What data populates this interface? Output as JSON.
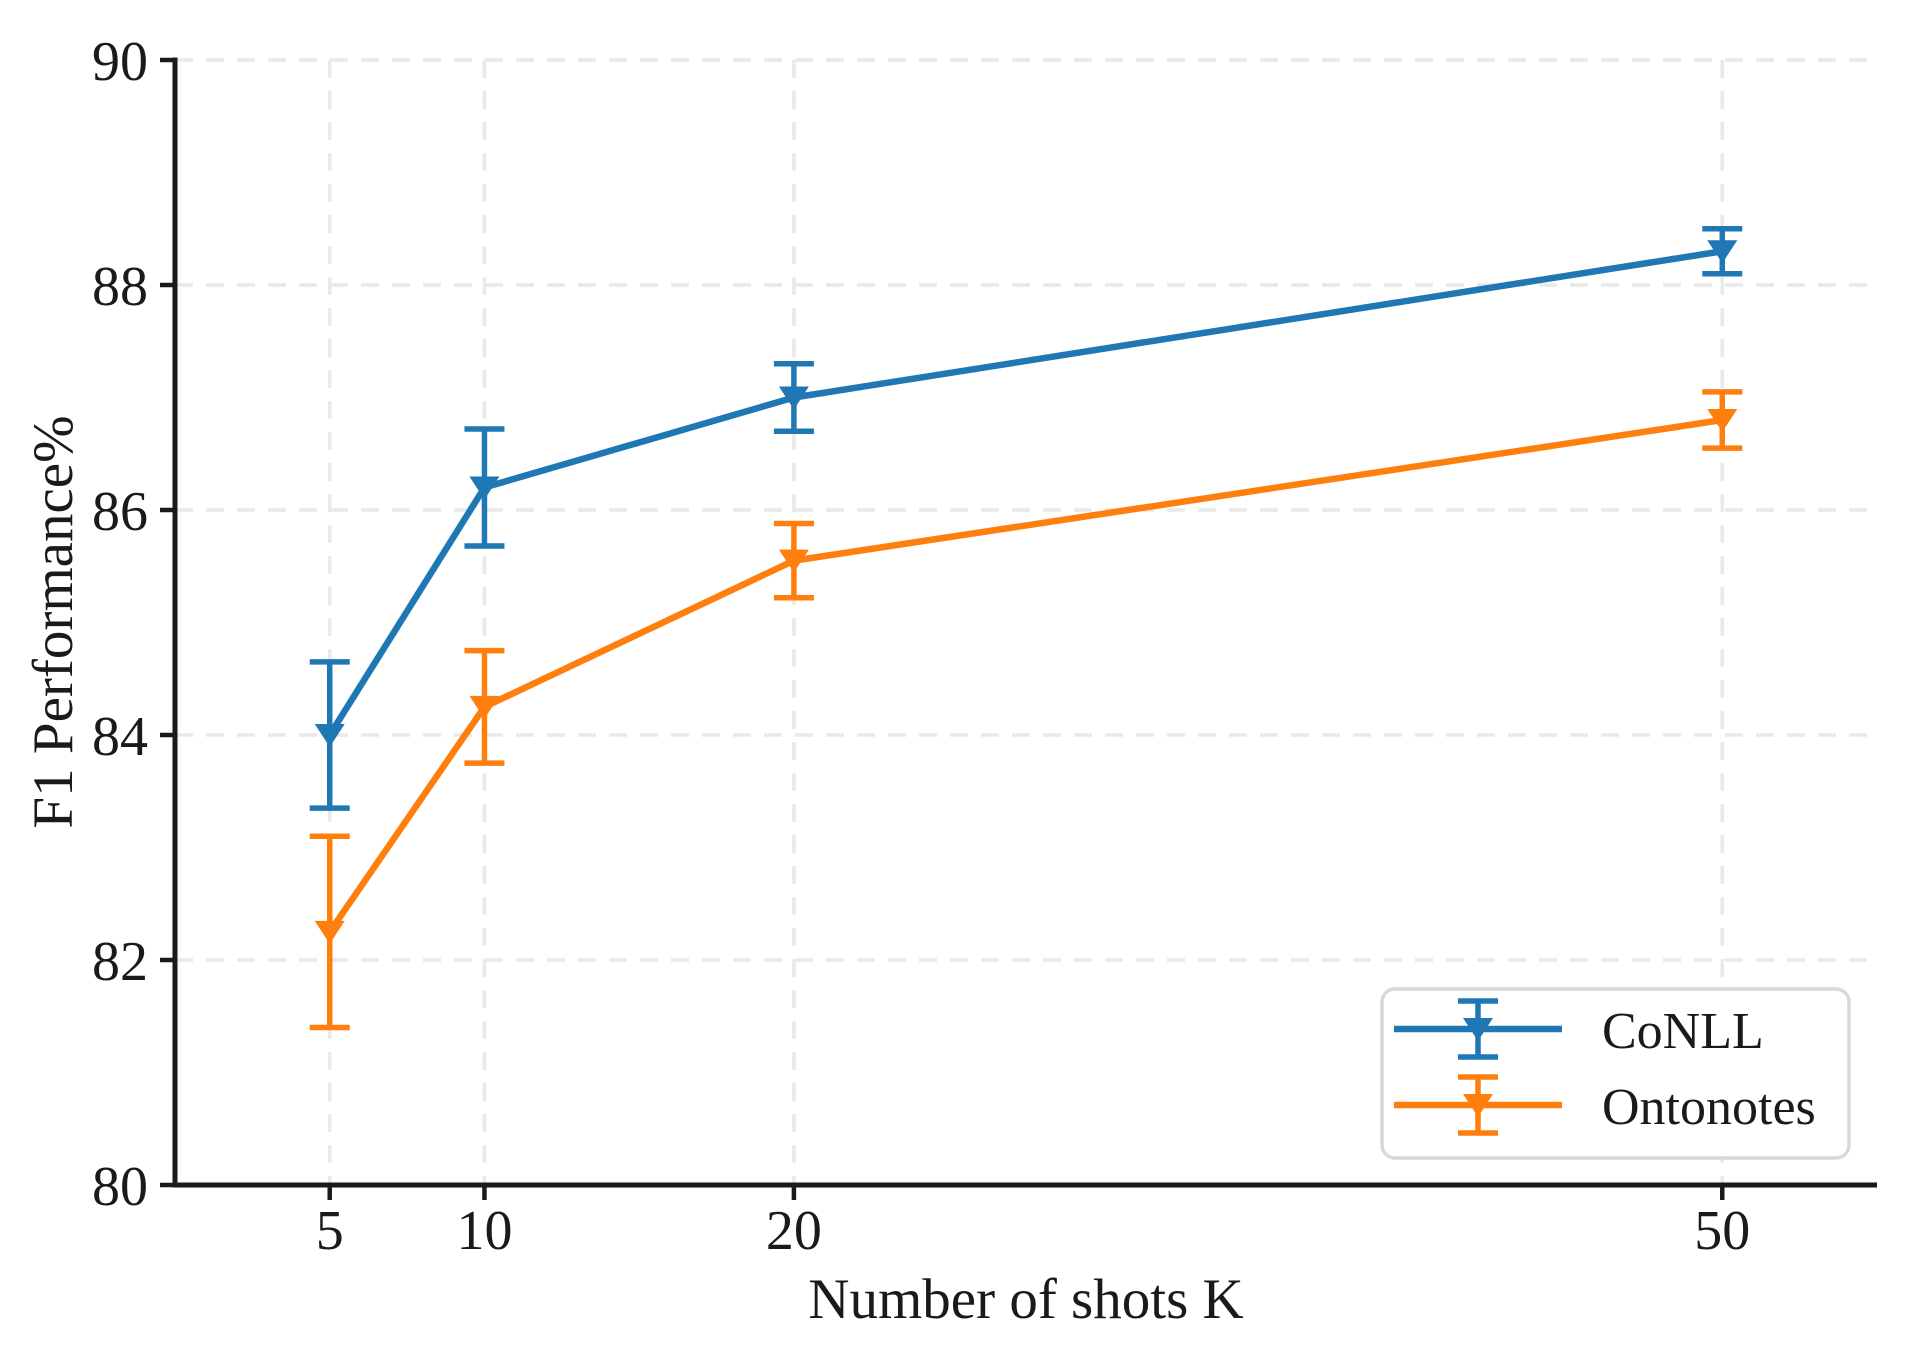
{
  "chart_data": {
    "type": "line",
    "title": "",
    "xlabel": "Number of shots K",
    "ylabel": "F1 Performance%",
    "x": [
      5,
      10,
      20,
      50
    ],
    "xticks": [
      5,
      10,
      20,
      50
    ],
    "yticks": [
      80,
      82,
      84,
      86,
      88,
      90
    ],
    "xlim": [
      0,
      55
    ],
    "ylim": [
      80,
      90
    ],
    "grid": "dashed-both-axes",
    "legend_position": "lower-right",
    "marker": "triangle-down",
    "error_bars": true,
    "series": [
      {
        "name": "CoNLL",
        "color": "#1f77b4",
        "values": [
          84.0,
          86.2,
          87.0,
          88.3
        ],
        "errors": [
          0.65,
          0.52,
          0.3,
          0.2
        ]
      },
      {
        "name": "Ontonotes",
        "color": "#ff7f0e",
        "values": [
          82.25,
          84.25,
          85.55,
          86.8
        ],
        "errors": [
          0.85,
          0.5,
          0.33,
          0.25
        ]
      }
    ]
  },
  "style": {
    "grid_color": "#e9e9e9",
    "spine_color": "#1a1a1a",
    "tick_color": "#1a1a1a",
    "legend_border_color": "#d8d8d8",
    "legend_background": "#ffffff",
    "background": "#ffffff"
  }
}
